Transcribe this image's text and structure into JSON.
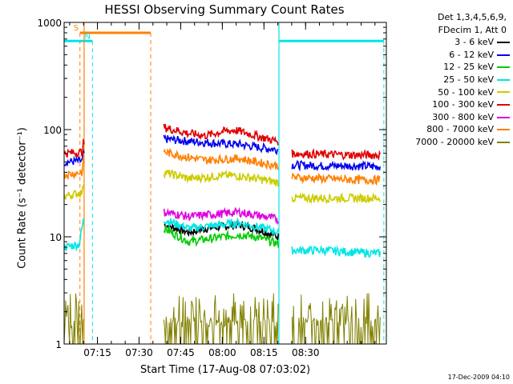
{
  "title": "HESSI Observing Summary Count Rates",
  "header": [
    "Det 1,3,4,5,6,9,",
    "FDecim 1, Att 0"
  ],
  "xlabel": "Start Time (17-Aug-08 07:03:02)",
  "ylabel": "Count Rate (s⁻¹ detector⁻¹)",
  "stamp": "17-Dec-2009 04:10",
  "chart_data": {
    "type": "line",
    "title": "HESSI Observing Summary Count Rates",
    "xlabel": "Start Time (17-Aug-08 07:03:02)",
    "ylabel": "Count Rate (s⁻¹ detector⁻¹)",
    "yscale": "log",
    "xlim": [
      7.05,
      8.985
    ],
    "ylim": [
      1,
      1000
    ],
    "x_unit": "hours (UT)",
    "xticks": [
      {
        "value": 7.25,
        "label": "07:15"
      },
      {
        "value": 7.5,
        "label": "07:30"
      },
      {
        "value": 7.75,
        "label": "07:45"
      },
      {
        "value": 8.0,
        "label": "08:00"
      },
      {
        "value": 8.25,
        "label": "08:15"
      },
      {
        "value": 8.5,
        "label": "08:30"
      }
    ],
    "yticks": [
      {
        "value": 1,
        "label": "1"
      },
      {
        "value": 10,
        "label": "10"
      },
      {
        "value": 100,
        "label": "100"
      },
      {
        "value": 1000,
        "label": "1000"
      }
    ],
    "data_gaps": [
      [
        7.17,
        7.645
      ],
      [
        8.34,
        8.415
      ]
    ],
    "series": [
      {
        "name": "3 - 6 keV",
        "color": "#000000",
        "points": [
          [
            7.65,
            13
          ],
          [
            7.8,
            11
          ],
          [
            7.9,
            12
          ],
          [
            8.0,
            12.5
          ],
          [
            8.1,
            13
          ],
          [
            8.2,
            12
          ],
          [
            8.3,
            10.5
          ],
          [
            8.34,
            10
          ]
        ]
      },
      {
        "name": "6 - 12 keV",
        "color": "#0000ee",
        "points": [
          [
            7.05,
            50
          ],
          [
            7.16,
            51
          ],
          [
            7.165,
            60
          ],
          [
            7.65,
            82
          ],
          [
            7.8,
            78
          ],
          [
            7.9,
            76
          ],
          [
            8.0,
            74
          ],
          [
            8.1,
            73
          ],
          [
            8.2,
            69
          ],
          [
            8.3,
            66
          ],
          [
            8.34,
            65
          ],
          [
            8.415,
            47
          ],
          [
            8.6,
            46
          ],
          [
            8.8,
            46
          ],
          [
            8.95,
            45
          ]
        ]
      },
      {
        "name": "12 - 25 keV",
        "color": "#00cc00",
        "points": [
          [
            7.65,
            12
          ],
          [
            7.8,
            9
          ],
          [
            7.9,
            9.5
          ],
          [
            8.0,
            10
          ],
          [
            8.1,
            10.5
          ],
          [
            8.2,
            10
          ],
          [
            8.3,
            9
          ],
          [
            8.34,
            8.5
          ]
        ]
      },
      {
        "name": "25 - 50 keV",
        "color": "#00e5e5",
        "points": [
          [
            7.05,
            8
          ],
          [
            7.14,
            8.5
          ],
          [
            7.165,
            14
          ],
          [
            7.65,
            14.5
          ],
          [
            7.8,
            12
          ],
          [
            7.9,
            12.5
          ],
          [
            8.0,
            13
          ],
          [
            8.1,
            13.5
          ],
          [
            8.2,
            12.5
          ],
          [
            8.3,
            11.5
          ],
          [
            8.34,
            11
          ],
          [
            8.415,
            7.5
          ],
          [
            8.6,
            7.5
          ],
          [
            8.8,
            7.2
          ],
          [
            8.95,
            7
          ]
        ]
      },
      {
        "name": "50 - 100 keV",
        "color": "#cccc00",
        "points": [
          [
            7.05,
            24
          ],
          [
            7.16,
            26
          ],
          [
            7.165,
            32
          ],
          [
            7.65,
            40
          ],
          [
            7.8,
            35
          ],
          [
            7.9,
            36
          ],
          [
            8.0,
            37.5
          ],
          [
            8.1,
            37
          ],
          [
            8.2,
            35
          ],
          [
            8.3,
            33
          ],
          [
            8.34,
            32
          ],
          [
            8.415,
            23
          ],
          [
            8.6,
            23
          ],
          [
            8.8,
            23
          ],
          [
            8.95,
            23
          ]
        ]
      },
      {
        "name": "100 - 300 keV",
        "color": "#e00000",
        "points": [
          [
            7.05,
            60
          ],
          [
            7.16,
            62
          ],
          [
            7.165,
            75
          ],
          [
            7.65,
            105
          ],
          [
            7.8,
            92
          ],
          [
            7.9,
            88
          ],
          [
            8.0,
            96
          ],
          [
            8.08,
            99
          ],
          [
            8.2,
            88
          ],
          [
            8.3,
            80
          ],
          [
            8.34,
            78
          ],
          [
            8.415,
            60
          ],
          [
            8.6,
            59
          ],
          [
            8.8,
            58
          ],
          [
            8.95,
            58
          ]
        ]
      },
      {
        "name": "300 - 800 keV",
        "color": "#e000e0",
        "points": [
          [
            7.65,
            17
          ],
          [
            7.8,
            15.5
          ],
          [
            7.9,
            16
          ],
          [
            8.0,
            16.5
          ],
          [
            8.1,
            17
          ],
          [
            8.2,
            16
          ],
          [
            8.3,
            15
          ],
          [
            8.34,
            14.5
          ]
        ]
      },
      {
        "name": "800 - 7000 keV",
        "color": "#ff8000",
        "points": [
          [
            7.05,
            38
          ],
          [
            7.16,
            40
          ],
          [
            7.165,
            50
          ],
          [
            7.65,
            62
          ],
          [
            7.8,
            55
          ],
          [
            7.9,
            52
          ],
          [
            8.0,
            53
          ],
          [
            8.1,
            54
          ],
          [
            8.2,
            50
          ],
          [
            8.3,
            47
          ],
          [
            8.34,
            46
          ],
          [
            8.415,
            36
          ],
          [
            8.6,
            35
          ],
          [
            8.8,
            34
          ],
          [
            8.95,
            34
          ]
        ]
      },
      {
        "name": "7000 - 20000 keV",
        "color": "#808000",
        "points": [
          [
            7.05,
            1.5
          ],
          [
            7.16,
            1.5
          ],
          [
            7.65,
            1.4
          ],
          [
            8.0,
            1.6
          ],
          [
            8.34,
            1.5
          ],
          [
            8.415,
            1.3
          ],
          [
            8.95,
            1.3
          ]
        ]
      }
    ],
    "flag_lines": [
      {
        "name": "S",
        "color": "#ff8000",
        "style": "dashed",
        "x": [
          7.145,
          7.57
        ],
        "level": 800
      },
      {
        "name": "N",
        "color": "#00e5e5",
        "style": "dashed",
        "x": [
          7.05,
          7.22
        ],
        "level": 670
      },
      {
        "name": "",
        "color": "#00e5e5",
        "style": "dashed",
        "x": [
          8.34,
          8.97
        ],
        "level": 670
      }
    ],
    "grid": false,
    "legend_position": "right"
  }
}
